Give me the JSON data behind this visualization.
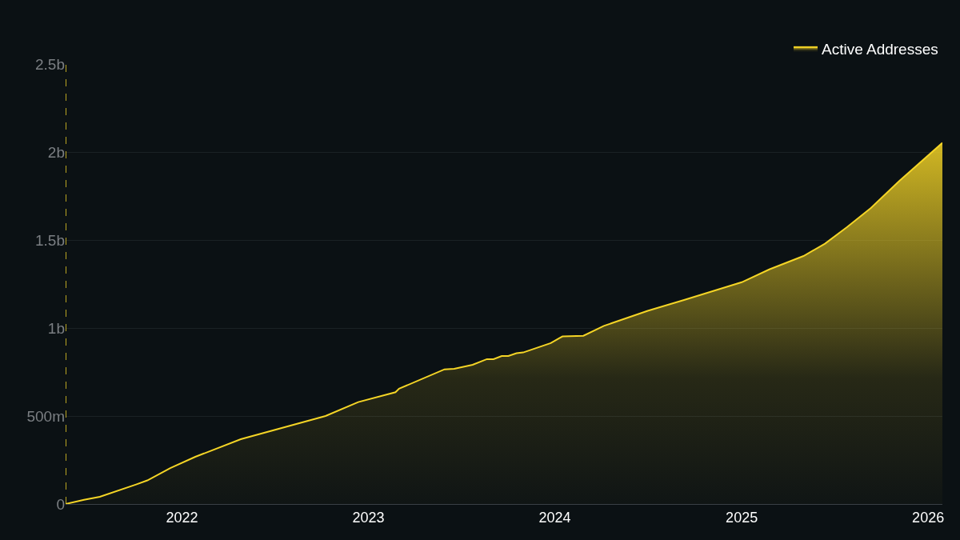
{
  "chart_data": {
    "type": "area",
    "legend": "top right",
    "grid": "y",
    "xlim": [
      "2021-05-18",
      "2026-01-29"
    ],
    "xticks": [
      {
        "value": "2022-01-01",
        "label": "2022"
      },
      {
        "value": "2023-01-01",
        "label": "2023"
      },
      {
        "value": "2024-01-01",
        "label": "2024"
      },
      {
        "value": "2025-01-01",
        "label": "2025"
      },
      {
        "value": "2026-01-01",
        "label": "2026"
      }
    ],
    "ylim": [
      0,
      2500000000
    ],
    "yticks": [
      {
        "value": 0,
        "label": "0"
      },
      {
        "value": 500000000,
        "label": "500m"
      },
      {
        "value": 1000000000,
        "label": "1b"
      },
      {
        "value": 1500000000,
        "label": "1.5b"
      },
      {
        "value": 2000000000,
        "label": "2b"
      },
      {
        "value": 2500000000,
        "label": "2.5b"
      }
    ],
    "x": [
      "2021-05-18",
      "2021-06-23",
      "2021-07-24",
      "2021-10-03",
      "2021-10-25",
      "2021-12-09",
      "2022-01-27",
      "2022-04-26",
      "2022-10-09",
      "2022-12-12",
      "2023-02-23",
      "2023-03-02",
      "2023-05-30",
      "2023-06-18",
      "2023-07-24",
      "2023-08-21",
      "2023-09-03",
      "2023-09-19",
      "2023-10-02",
      "2023-10-18",
      "2023-10-31",
      "2023-12-24",
      "2024-01-10",
      "2024-01-16",
      "2024-02-26",
      "2024-04-06",
      "2024-07-01",
      "2024-09-10",
      "2025-01-01",
      "2025-02-24",
      "2025-05-02",
      "2025-06-13",
      "2025-07-26",
      "2025-09-11",
      "2025-11-06",
      "2026-01-29"
    ],
    "series": [
      {
        "name": "Active Addresses",
        "color": "#f5d526",
        "values": [
          0,
          24000000,
          41000000,
          111000000,
          134000000,
          204000000,
          268000000,
          368000000,
          500000000,
          579000000,
          635000000,
          655000000,
          765000000,
          768000000,
          791000000,
          823000000,
          823000000,
          841000000,
          841000000,
          857000000,
          861000000,
          914000000,
          943000000,
          952000000,
          956000000,
          1012000000,
          1098000000,
          1159000000,
          1260000000,
          1333000000,
          1409000000,
          1479000000,
          1573000000,
          1682000000,
          1836000000,
          2052000000
        ]
      }
    ],
    "ref_lines": [
      {
        "axis": "x",
        "value": "2021-05-18",
        "color": "#f5d526",
        "line_style": "dashed"
      }
    ]
  }
}
